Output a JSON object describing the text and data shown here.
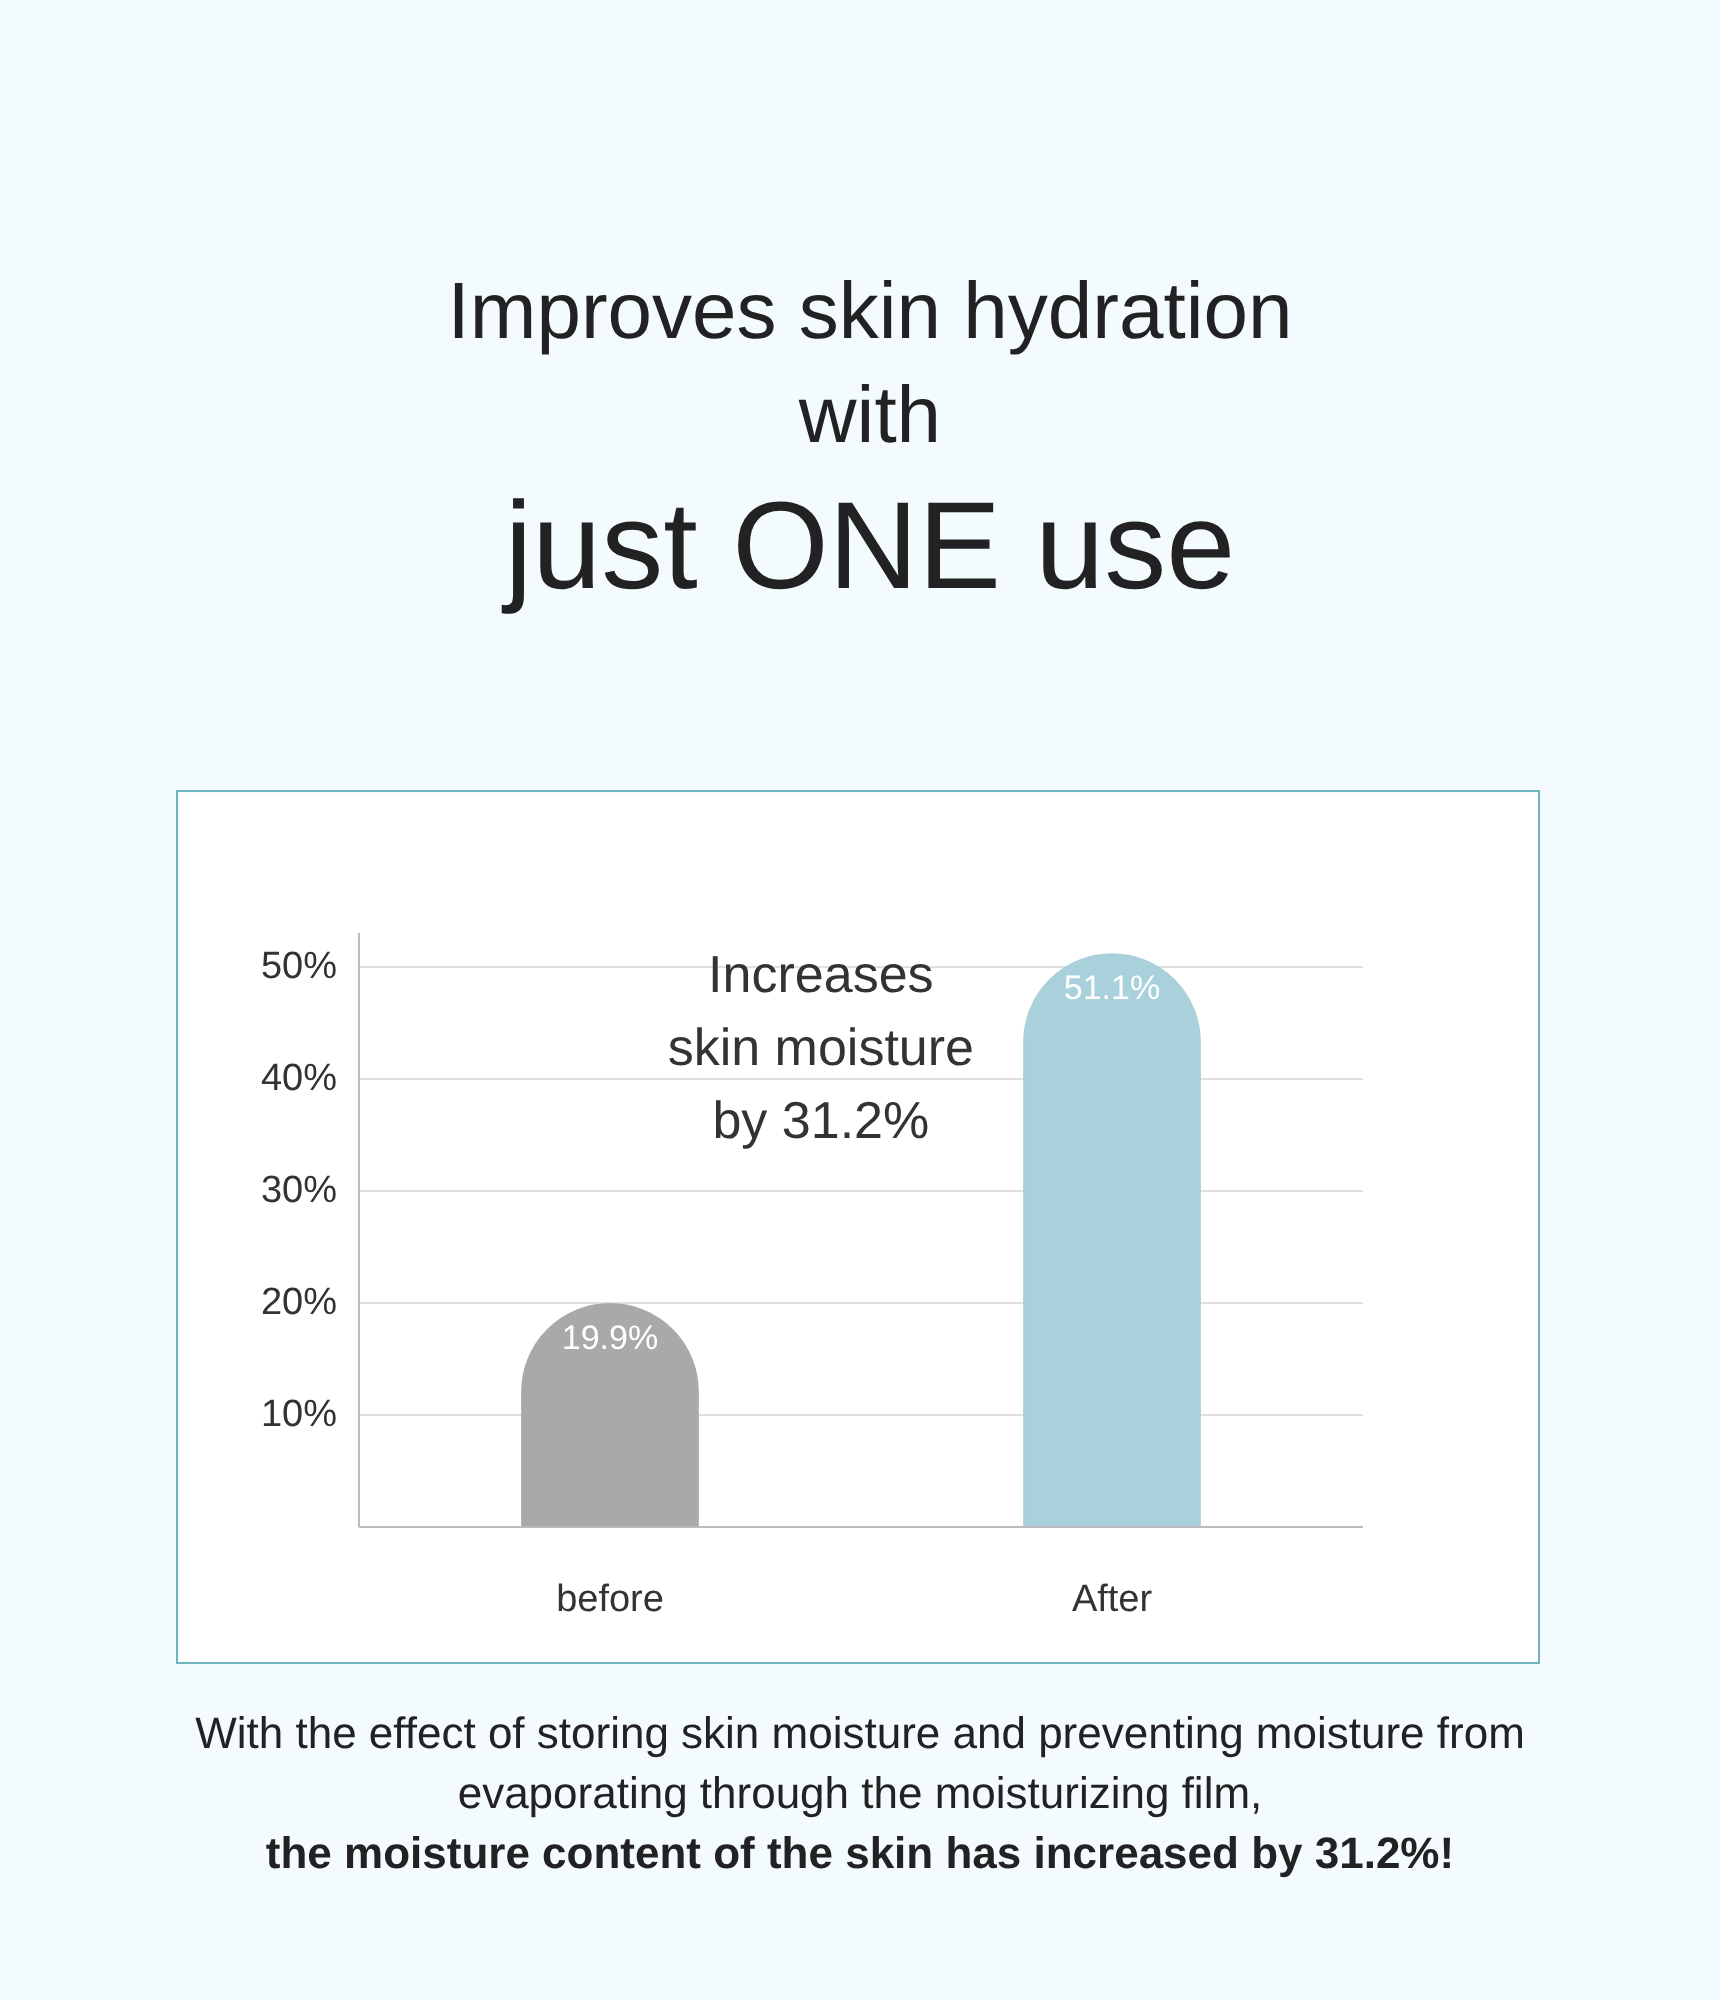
{
  "chart_data": {
    "type": "bar",
    "title": "Improves skin hydration with",
    "subtitle": "just ONE use",
    "categories": [
      "before",
      "After"
    ],
    "values": [
      19.9,
      51.1
    ],
    "colors": [
      "#a9a9a9",
      "#a9d1dc"
    ],
    "value_labels": [
      "19.9%",
      "51.1%"
    ],
    "ylim": [
      0,
      53
    ],
    "yticks": [
      {
        "value": 10,
        "label": "10%"
      },
      {
        "value": 20,
        "label": "20%"
      },
      {
        "value": 30,
        "label": "30%"
      },
      {
        "value": 40,
        "label": "40%"
      },
      {
        "value": 50,
        "label": "50%"
      }
    ],
    "grid": "y",
    "annotations": [
      "Increases skin moisture by 31.2%",
      "With the effect of storing skin moisture and preventing moisture from evaporating through the moisturizing film,",
      "the moisture content of the skin has increased by 31.2%!"
    ]
  }
}
